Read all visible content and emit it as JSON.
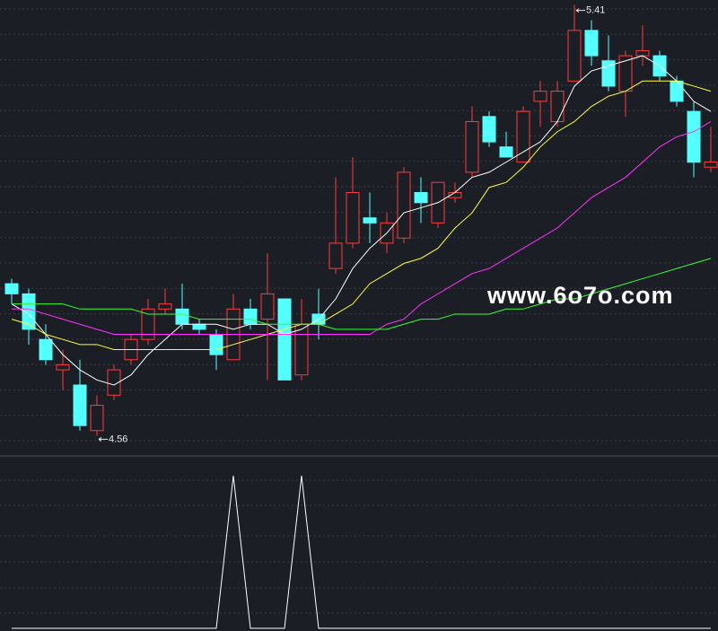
{
  "chart_data": [
    {
      "type": "candlestick",
      "up_color": "#ff3b3b",
      "down_color": "#54ffff",
      "open": [
        4.86,
        4.84,
        4.75,
        4.69,
        4.66,
        4.57,
        4.64,
        4.71,
        4.75,
        4.81,
        4.81,
        4.78,
        4.76,
        4.71,
        4.81,
        4.79,
        4.83,
        4.68,
        4.8,
        4.89,
        4.94,
        4.99,
        4.94,
        4.95,
        5.04,
        4.98,
        5.03,
        5.08,
        5.19,
        5.13,
        5.1,
        5.22,
        5.18,
        5.26,
        5.36,
        5.3,
        5.24,
        5.31,
        5.31,
        5.26,
        5.2,
        5.09
      ],
      "high": [
        4.87,
        4.85,
        4.78,
        4.73,
        4.71,
        4.64,
        4.7,
        4.76,
        4.83,
        4.85,
        4.86,
        4.79,
        4.77,
        4.84,
        4.83,
        4.92,
        4.83,
        4.83,
        4.85,
        5.07,
        5.11,
        5.04,
        5.0,
        5.09,
        5.07,
        5.06,
        5.06,
        5.21,
        5.2,
        5.16,
        5.21,
        5.26,
        5.26,
        5.41,
        5.38,
        5.35,
        5.32,
        5.37,
        5.32,
        5.27,
        5.22,
        5.17
      ],
      "low": [
        4.82,
        4.74,
        4.7,
        4.65,
        4.57,
        4.56,
        4.63,
        4.7,
        4.74,
        4.8,
        4.77,
        4.76,
        4.69,
        4.71,
        4.77,
        4.67,
        4.67,
        4.67,
        4.75,
        4.88,
        4.93,
        4.94,
        4.92,
        4.94,
        4.98,
        4.97,
        5.02,
        5.07,
        5.13,
        5.11,
        5.1,
        5.17,
        5.17,
        5.26,
        5.29,
        5.24,
        5.19,
        5.29,
        5.26,
        5.21,
        5.07,
        5.08
      ],
      "close": [
        4.84,
        4.77,
        4.71,
        4.7,
        4.58,
        4.62,
        4.69,
        4.75,
        4.81,
        4.82,
        4.78,
        4.77,
        4.72,
        4.81,
        4.78,
        4.84,
        4.67,
        4.78,
        4.78,
        4.94,
        5.04,
        4.98,
        4.98,
        5.08,
        5.02,
        5.06,
        5.04,
        5.18,
        5.14,
        5.11,
        5.2,
        5.24,
        5.24,
        5.36,
        5.31,
        5.25,
        5.31,
        5.32,
        5.27,
        5.22,
        5.1,
        5.1
      ],
      "series": [
        {
          "color": "#ffffff",
          "values": [
            4.82,
            4.8,
            4.76,
            4.72,
            4.69,
            4.67,
            4.66,
            4.68,
            4.72,
            4.75,
            4.78,
            4.78,
            4.78,
            4.77,
            4.78,
            4.78,
            4.76,
            4.77,
            4.79,
            4.83,
            4.89,
            4.93,
            4.96,
            5.0,
            5.01,
            5.02,
            5.04,
            5.07,
            5.08,
            5.1,
            5.12,
            5.14,
            5.18,
            5.25,
            5.28,
            5.29,
            5.3,
            5.31,
            5.29,
            5.26,
            5.22,
            5.2
          ]
        },
        {
          "color": "#ffff33",
          "values": [
            4.79,
            4.78,
            4.76,
            4.75,
            4.74,
            4.74,
            4.73,
            4.73,
            4.73,
            4.73,
            4.73,
            4.73,
            4.73,
            4.74,
            4.75,
            4.76,
            4.77,
            4.78,
            4.78,
            4.8,
            4.82,
            4.86,
            4.88,
            4.9,
            4.91,
            4.93,
            4.97,
            5.0,
            5.05,
            5.06,
            5.09,
            5.13,
            5.16,
            5.18,
            5.21,
            5.23,
            5.24,
            5.26,
            5.26,
            5.26,
            5.25,
            5.24
          ]
        },
        {
          "color": "#ff33ff",
          "values": [
            4.81,
            4.81,
            4.8,
            4.79,
            4.78,
            4.77,
            4.76,
            4.76,
            4.76,
            4.76,
            4.76,
            4.76,
            4.76,
            4.76,
            4.76,
            4.76,
            4.76,
            4.76,
            4.76,
            4.76,
            4.76,
            4.76,
            4.78,
            4.79,
            4.82,
            4.84,
            4.86,
            4.88,
            4.89,
            4.91,
            4.93,
            4.95,
            4.97,
            5.0,
            5.03,
            5.05,
            5.07,
            5.1,
            5.13,
            5.15,
            5.16,
            5.18
          ]
        },
        {
          "color": "#33ff33",
          "values": [
            4.82,
            4.82,
            4.82,
            4.82,
            4.81,
            4.81,
            4.81,
            4.81,
            4.8,
            4.8,
            4.8,
            4.79,
            4.79,
            4.79,
            4.79,
            4.78,
            4.78,
            4.78,
            4.78,
            4.77,
            4.77,
            4.77,
            4.77,
            4.78,
            4.79,
            4.79,
            4.8,
            4.8,
            4.8,
            4.81,
            4.81,
            4.82,
            4.83,
            4.83,
            4.84,
            4.85,
            4.86,
            4.87,
            4.88,
            4.89,
            4.9,
            4.91
          ]
        }
      ],
      "ylim": [
        4.52,
        5.42
      ],
      "annotations": [
        {
          "text": "5.41"
        },
        {
          "text": "4.56"
        }
      ],
      "watermark": "www.6o7o.com"
    },
    {
      "type": "line",
      "series": [
        {
          "color": "#ffffff",
          "values": [
            0,
            0,
            0,
            0,
            0,
            0,
            0,
            0,
            0,
            0,
            0,
            0,
            0,
            1,
            0,
            0,
            0,
            1,
            0,
            0,
            0,
            0,
            0,
            0,
            0,
            0,
            0,
            0,
            0,
            0,
            0,
            0,
            0,
            0,
            0,
            0,
            0,
            0,
            0,
            0,
            0,
            0
          ]
        }
      ],
      "ylim": [
        0,
        1
      ]
    }
  ]
}
